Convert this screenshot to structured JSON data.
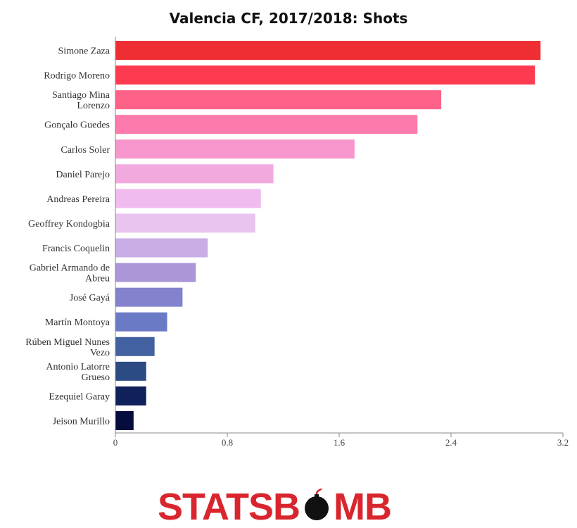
{
  "chart_data": {
    "type": "bar",
    "orientation": "horizontal",
    "title": "Valencia CF, 2017/2018: Shots",
    "xlabel": "",
    "ylabel": "",
    "xlim": [
      0,
      3.2
    ],
    "xticks": [
      "0",
      "0.8",
      "1.6",
      "2.4",
      "3.2"
    ],
    "grid": false,
    "categories": [
      [
        "Simone Zaza"
      ],
      [
        "Rodrigo Moreno"
      ],
      [
        "Santiago Mina",
        "Lorenzo"
      ],
      [
        "Gonçalo Guedes"
      ],
      [
        "Carlos Soler"
      ],
      [
        "Daniel Parejo"
      ],
      [
        "Andreas Pereira"
      ],
      [
        "Geoffrey Kondogbia"
      ],
      [
        "Francis Coquelin"
      ],
      [
        "Gabriel Armando de",
        "Abreu"
      ],
      [
        "José Gayá"
      ],
      [
        "Martín Montoya"
      ],
      [
        "Rúben Miguel Nunes",
        "Vezo"
      ],
      [
        "Antonio Latorre",
        "Grueso"
      ],
      [
        "Ezequiel Garay"
      ],
      [
        "Jeison Murillo"
      ]
    ],
    "values": [
      3.04,
      3.0,
      2.33,
      2.16,
      1.71,
      1.13,
      1.04,
      1.0,
      0.66,
      0.575,
      0.48,
      0.37,
      0.28,
      0.22,
      0.22,
      0.13
    ],
    "colors": [
      "#ee2e33",
      "#fd3a50",
      "#fe6288",
      "#fd7aac",
      "#f796cd",
      "#f2aade",
      "#f0bcee",
      "#e8c4ee",
      "#c9ade6",
      "#ab96d7",
      "#8382cc",
      "#6b7ac5",
      "#4360a0",
      "#2c4a83",
      "#10205a",
      "#060d3d"
    ]
  },
  "logo": {
    "text_left": "STATSB",
    "text_right": "MB",
    "icon": "bomb-icon"
  }
}
